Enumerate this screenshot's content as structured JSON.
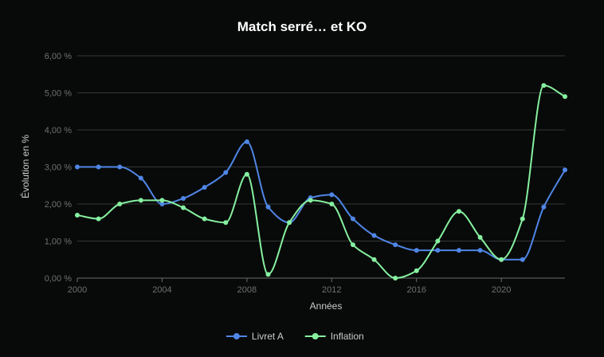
{
  "chart_data": {
    "type": "line",
    "title": "Match serré… et KO",
    "xlabel": "Années",
    "ylabel": "Évolution en %",
    "x": [
      2000,
      2001,
      2002,
      2003,
      2004,
      2005,
      2006,
      2007,
      2008,
      2009,
      2010,
      2011,
      2012,
      2013,
      2014,
      2015,
      2016,
      2017,
      2018,
      2019,
      2020,
      2021,
      2022,
      2023
    ],
    "xlim": [
      2000,
      2023
    ],
    "xticks": [
      2000,
      2004,
      2008,
      2012,
      2016,
      2020
    ],
    "ylim": [
      0,
      6
    ],
    "yticks": [
      0,
      1,
      2,
      3,
      4,
      5,
      6
    ],
    "ytick_labels": [
      "0,00 %",
      "1,00 %",
      "2,00 %",
      "3,00 %",
      "4,00 %",
      "5,00 %",
      "6,00 %"
    ],
    "grid": true,
    "legend_position": "bottom",
    "series": [
      {
        "name": "Livret A",
        "color": "#4f86e6",
        "values": [
          3.0,
          3.0,
          3.0,
          2.7,
          2.0,
          2.15,
          2.45,
          2.85,
          3.68,
          1.92,
          1.5,
          2.17,
          2.25,
          1.6,
          1.15,
          0.9,
          0.75,
          0.75,
          0.75,
          0.75,
          0.5,
          0.5,
          1.92,
          2.92
        ]
      },
      {
        "name": "Inflation",
        "color": "#86f0a0",
        "values": [
          1.7,
          1.6,
          2.0,
          2.1,
          2.1,
          1.9,
          1.6,
          1.5,
          2.8,
          0.1,
          1.5,
          2.1,
          2.0,
          0.9,
          0.5,
          0.0,
          0.2,
          1.0,
          1.8,
          1.1,
          0.5,
          1.6,
          5.2,
          4.9
        ]
      }
    ]
  }
}
